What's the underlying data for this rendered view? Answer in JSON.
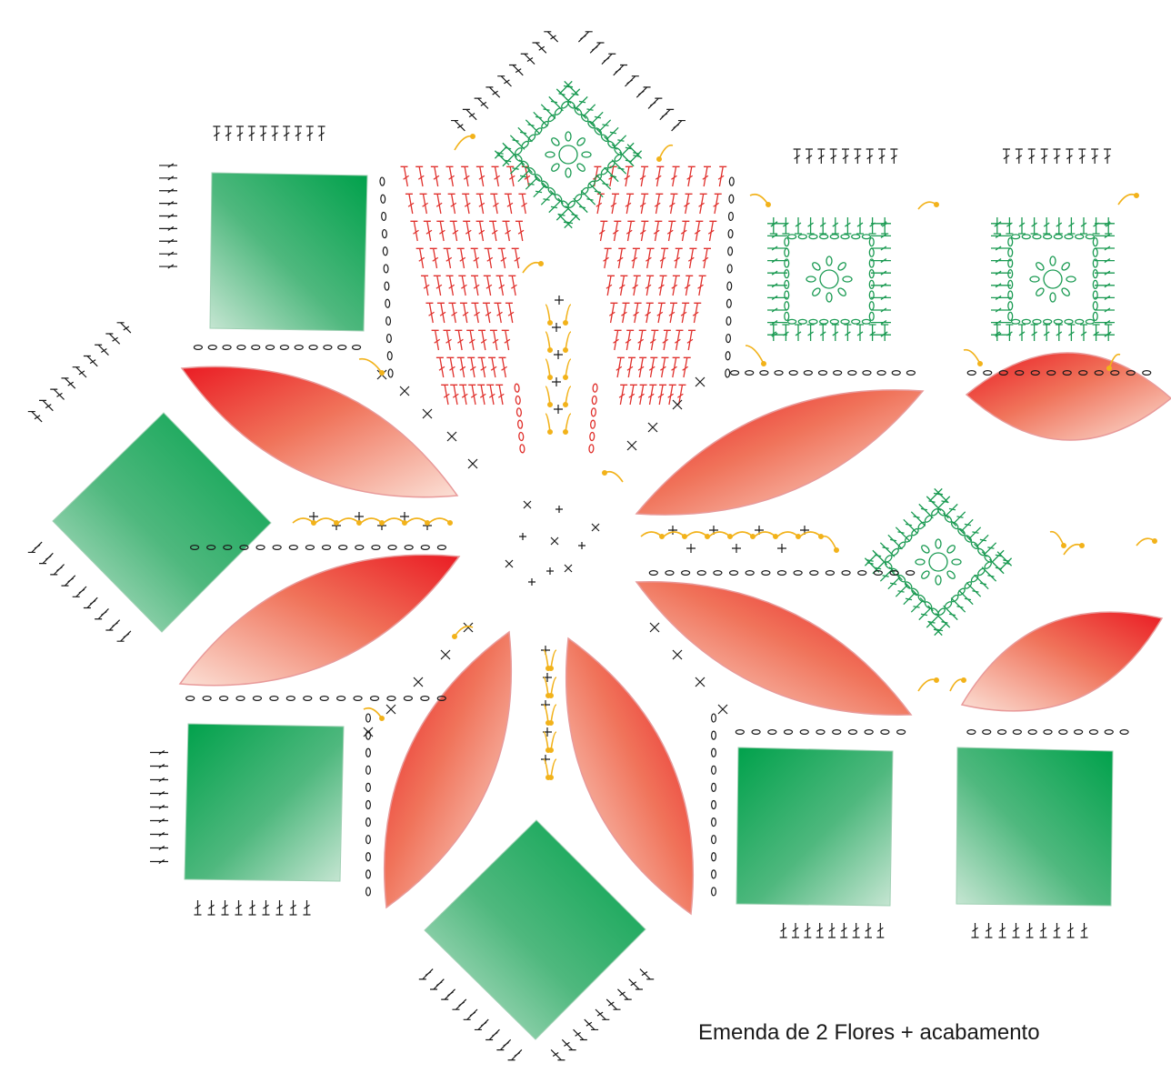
{
  "caption": "Emenda de 2 Flores + acabamento",
  "colors": {
    "petal_dark": "#ea1c24",
    "petal_light": "#f6c0ad",
    "square_dark": "#00a14b",
    "square_light": "#b9dfc8",
    "stitch_red": "#e0302c",
    "stitch_green": "#1a9a52",
    "join_arrow": "#f2b21a",
    "stitch_black": "#1a1a1a"
  },
  "legend_icons": [
    "chain-stitch-icon",
    "single-crochet-icon",
    "double-crochet-icon",
    "join-arrow-icon"
  ]
}
